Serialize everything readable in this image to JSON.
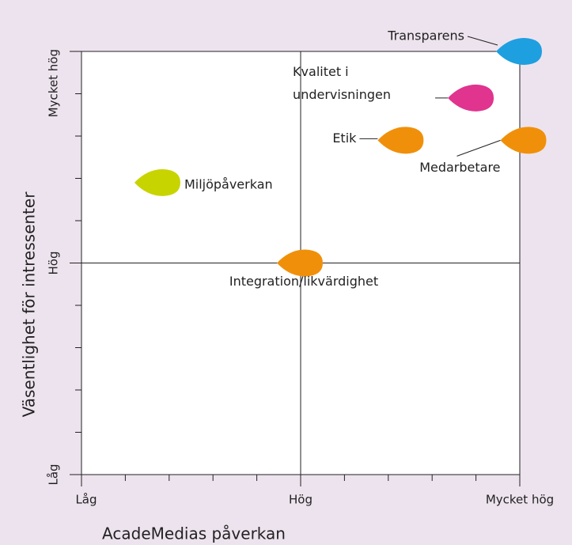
{
  "chart_data": {
    "type": "scatter",
    "x_label": "AcadeMedias påverkan",
    "y_label": "Väsentlighet för intressenter",
    "xlim": [
      0,
      10
    ],
    "ylim": [
      0,
      10
    ],
    "xticks": [
      {
        "value": 0,
        "label": "Låg"
      },
      {
        "value": 5,
        "label": "Hög"
      },
      {
        "value": 10,
        "label": "Mycket hög"
      }
    ],
    "yticks": [
      {
        "value": 0,
        "label": "Låg"
      },
      {
        "value": 5,
        "label": "Hög"
      },
      {
        "value": 10,
        "label": "Mycket hög"
      }
    ],
    "xminorticks": [
      1,
      2,
      3,
      4,
      6,
      7,
      8,
      9
    ],
    "yminorticks": [
      1,
      2,
      3,
      4,
      6,
      7,
      8,
      9
    ],
    "points": [
      {
        "label": "Transparens",
        "x": 10,
        "y": 10,
        "color": "#1e9fe0"
      },
      {
        "label": "Kvalitet i\nundervisningen",
        "x": 8.9,
        "y": 8.9,
        "color": "#e0348f"
      },
      {
        "label": "Etik",
        "x": 7.3,
        "y": 7.9,
        "color": "#f0900a"
      },
      {
        "label": "Medarbetare",
        "x": 10.1,
        "y": 7.9,
        "color": "#f0900a"
      },
      {
        "label": "Miljöpåverkan",
        "x": 1.75,
        "y": 6.9,
        "color": "#c8d400"
      },
      {
        "label": "Integration/likvärdighet",
        "x": 5,
        "y": 5,
        "color": "#f0900a"
      }
    ]
  }
}
